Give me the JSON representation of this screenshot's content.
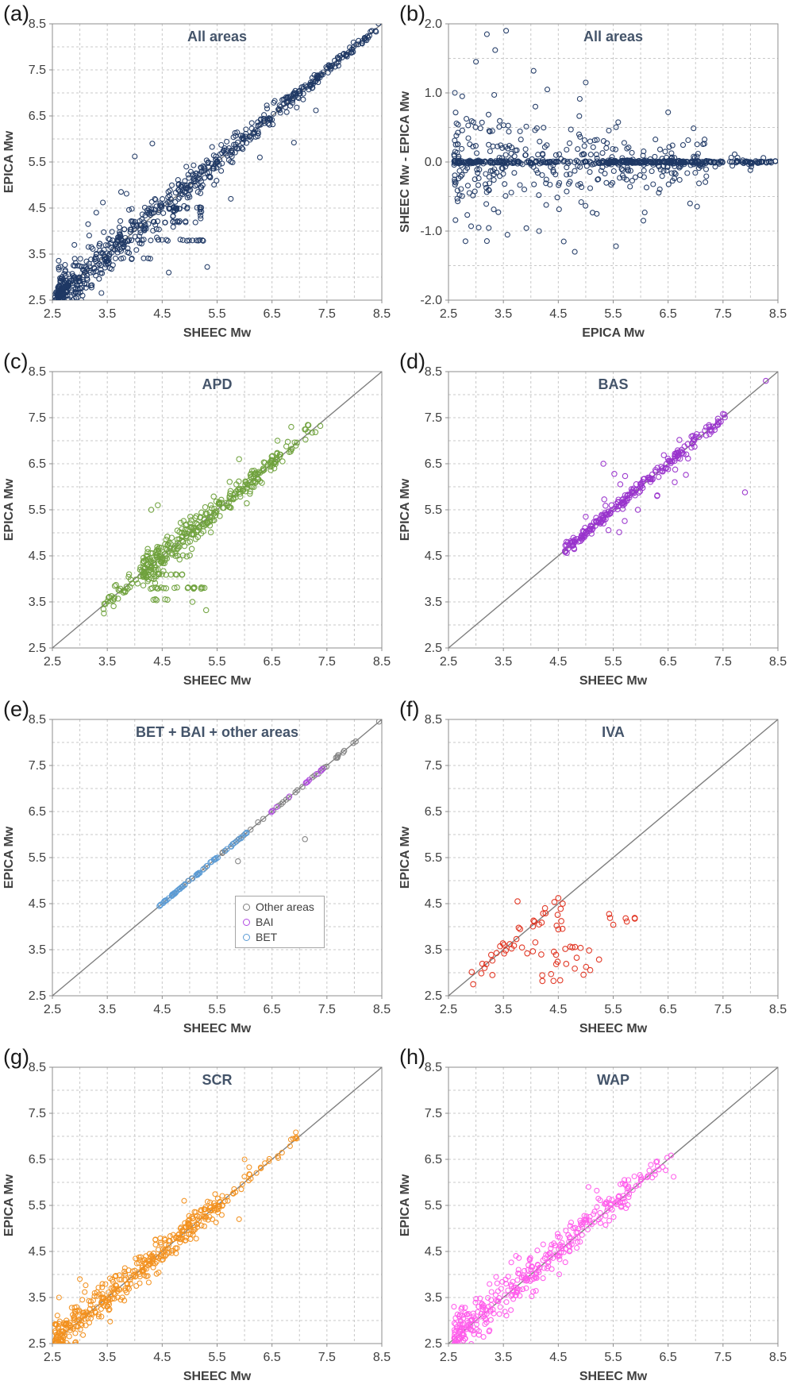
{
  "chart_data": [
    {
      "type": "scatter",
      "label": "(a)",
      "title": "All areas",
      "xlabel": "SHEEC Mw",
      "ylabel": "EPICA Mw",
      "xlim": [
        2.5,
        8.5
      ],
      "ylim": [
        2.5,
        8.5
      ],
      "xticks": [
        2.5,
        3.5,
        4.5,
        5.5,
        6.5,
        7.5,
        8.5
      ],
      "yticks": [
        2.5,
        3.5,
        4.5,
        5.5,
        6.5,
        7.5,
        8.5
      ],
      "grid_step": 0.5,
      "diagonal": true,
      "color": "#1F3864",
      "marker_radius": 3,
      "seed": 11,
      "series": [
        {
          "mode": "diag",
          "count": 560,
          "x_min": 2.6,
          "x_max": 7.4,
          "bias": 1.6,
          "sigma": 0.3,
          "tighten": 0.72,
          "outliers": [
            [
              4.0,
              5.62
            ],
            [
              4.32,
              5.9
            ],
            [
              3.42,
              4.62
            ],
            [
              6.9,
              5.92
            ],
            [
              5.32,
              3.22
            ],
            [
              4.62,
              3.1
            ],
            [
              6.28,
              5.6
            ],
            [
              3.05,
              2.6
            ],
            [
              7.3,
              6.62
            ],
            [
              3.3,
              4.4
            ],
            [
              3.75,
              4.85
            ],
            [
              2.9,
              3.7
            ],
            [
              3.15,
              4.15
            ],
            [
              5.75,
              4.7
            ]
          ]
        },
        {
          "mode": "diag",
          "count": 70,
          "x_min": 7.2,
          "x_max": 8.48,
          "bias": 1.1,
          "sigma": 0.05,
          "tighten": 0
        },
        {
          "mode": "diag",
          "count": 45,
          "x_min": 2.55,
          "x_max": 2.8,
          "bias": 1.0,
          "sigma": 0.06,
          "tighten": 0
        }
      ],
      "rows": [
        {
          "y": 3.8,
          "x_min": 3.35,
          "x_max": 5.3,
          "count": 26
        },
        {
          "y": 4.2,
          "x_min": 3.9,
          "x_max": 5.25,
          "count": 16
        },
        {
          "y": 4.5,
          "x_min": 4.15,
          "x_max": 5.3,
          "count": 12
        },
        {
          "y": 5.0,
          "x_min": 4.65,
          "x_max": 5.5,
          "count": 9
        },
        {
          "y": 3.4,
          "x_min": 3.2,
          "x_max": 4.3,
          "count": 10
        }
      ],
      "cols": [
        {
          "x": 5.2,
          "y_min": 4.25,
          "y_max": 5.45,
          "count": 14
        },
        {
          "x": 4.7,
          "y_min": 4.05,
          "y_max": 4.8,
          "count": 8
        }
      ]
    },
    {
      "type": "scatter",
      "label": "(b)",
      "title": "All areas",
      "xlabel": "EPICA Mw",
      "ylabel": "SHEEC Mw - EPICA Mw",
      "xlim": [
        2.5,
        8.5
      ],
      "ylim": [
        -2,
        2
      ],
      "xticks": [
        2.5,
        3.5,
        4.5,
        5.5,
        6.5,
        7.5,
        8.5
      ],
      "yticks": [
        -2,
        -1,
        0,
        1,
        2
      ],
      "grid_step": 0.5,
      "diagonal": false,
      "color": "#1F3864",
      "marker_radius": 3,
      "seed": 22,
      "series": [
        {
          "mode": "resid",
          "count": 520,
          "x_min": 2.6,
          "x_max": 7.2,
          "bias": 1.5,
          "sigma": 0.42,
          "tighten": 0.55,
          "zero_frac": 0.38,
          "outliers": [
            [
              3.2,
              1.85
            ],
            [
              3.55,
              1.9
            ],
            [
              3.35,
              1.62
            ],
            [
              3.0,
              1.45
            ],
            [
              4.05,
              1.32
            ],
            [
              4.3,
              1.05
            ],
            [
              5.0,
              1.15
            ],
            [
              2.75,
              0.95
            ],
            [
              6.5,
              0.72
            ],
            [
              4.6,
              -1.15
            ],
            [
              5.55,
              -1.22
            ],
            [
              4.15,
              -1.0
            ],
            [
              6.05,
              -0.85
            ],
            [
              3.05,
              -0.95
            ],
            [
              5.2,
              -0.75
            ],
            [
              6.9,
              -0.6
            ],
            [
              4.8,
              -1.3
            ]
          ]
        },
        {
          "mode": "resid",
          "count": 200,
          "x_min": 5.2,
          "x_max": 8.48,
          "bias": 0.9,
          "sigma": 0.06,
          "tighten": 0,
          "zero_frac": 0.75
        }
      ]
    },
    {
      "type": "scatter",
      "label": "(c)",
      "title": "APD",
      "xlabel": "SHEEC Mw",
      "ylabel": "EPICA Mw",
      "xlim": [
        2.5,
        8.5
      ],
      "ylim": [
        2.5,
        8.5
      ],
      "xticks": [
        2.5,
        3.5,
        4.5,
        5.5,
        6.5,
        7.5,
        8.5
      ],
      "yticks": [
        2.5,
        3.5,
        4.5,
        5.5,
        6.5,
        7.5,
        8.5
      ],
      "grid_step": 0.5,
      "diagonal": true,
      "color": "#6FA13C",
      "marker_radius": 3.2,
      "seed": 33,
      "series": [
        {
          "mode": "diag",
          "count": 300,
          "x_min": 4.15,
          "x_max": 6.6,
          "bias": 1.35,
          "sigma": 0.22,
          "tighten": 0.55,
          "outliers": [
            [
              5.3,
              3.32
            ],
            [
              5.05,
              3.5
            ],
            [
              4.42,
              5.6
            ],
            [
              4.3,
              5.5
            ],
            [
              6.85,
              7.3
            ],
            [
              7.38,
              7.32
            ],
            [
              6.6,
              7.0
            ],
            [
              5.9,
              6.6
            ]
          ]
        },
        {
          "mode": "diag",
          "count": 40,
          "x_min": 3.42,
          "x_max": 4.2,
          "bias": 1,
          "sigma": 0.1,
          "tighten": 0
        },
        {
          "mode": "diag",
          "count": 25,
          "x_min": 6.5,
          "x_max": 7.3,
          "bias": 1,
          "sigma": 0.12,
          "tighten": 0
        }
      ],
      "rows": [
        {
          "y": 3.8,
          "x_min": 4.25,
          "x_max": 5.3,
          "count": 20
        },
        {
          "y": 4.1,
          "x_min": 4.3,
          "x_max": 5.2,
          "count": 10
        },
        {
          "y": 4.5,
          "x_min": 4.35,
          "x_max": 5.15,
          "count": 8
        },
        {
          "y": 3.55,
          "x_min": 4.3,
          "x_max": 4.9,
          "count": 5
        }
      ]
    },
    {
      "type": "scatter",
      "label": "(d)",
      "title": "BAS",
      "xlabel": "SHEEC Mw",
      "ylabel": "EPICA Mw",
      "xlim": [
        2.5,
        8.5
      ],
      "ylim": [
        2.5,
        8.5
      ],
      "xticks": [
        2.5,
        3.5,
        4.5,
        5.5,
        6.5,
        7.5,
        8.5
      ],
      "yticks": [
        2.5,
        3.5,
        4.5,
        5.5,
        6.5,
        7.5,
        8.5
      ],
      "grid_step": 0.5,
      "diagonal": true,
      "color": "#9933CC",
      "marker_radius": 3.2,
      "seed": 44,
      "series": [
        {
          "mode": "diag",
          "count": 210,
          "x_min": 4.62,
          "x_max": 7.55,
          "bias": 1.25,
          "sigma": 0.06,
          "tighten": 0,
          "outliers": [
            [
              5.32,
              6.5
            ],
            [
              5.52,
              6.28
            ],
            [
              7.9,
              5.88
            ],
            [
              6.62,
              6.1
            ],
            [
              5.95,
              5.5
            ],
            [
              6.3,
              5.8
            ],
            [
              8.28,
              8.3
            ],
            [
              5.0,
              5.35
            ]
          ]
        },
        {
          "mode": "diag",
          "count": 26,
          "x_min": 5.3,
          "x_max": 7.0,
          "bias": 1.1,
          "sigma": 0.28,
          "tighten": 0
        }
      ]
    },
    {
      "type": "scatter",
      "label": "(e)",
      "title": "BET + BAI + other areas",
      "xlabel": "SHEEC Mw",
      "ylabel": "EPICA Mw",
      "xlim": [
        2.5,
        8.5
      ],
      "ylim": [
        2.5,
        8.5
      ],
      "xticks": [
        2.5,
        3.5,
        4.5,
        5.5,
        6.5,
        7.5,
        8.5
      ],
      "yticks": [
        2.5,
        3.5,
        4.5,
        5.5,
        6.5,
        7.5,
        8.5
      ],
      "grid_step": 0.5,
      "diagonal": true,
      "color": "#7F7F7F",
      "marker_radius": 3.2,
      "seed": 55,
      "legend": true,
      "series": [
        {
          "name": "Other areas",
          "color": "#7F7F7F",
          "mode": "diag",
          "count": 42,
          "x_min": 4.7,
          "x_max": 8.48,
          "bias": 0.8,
          "sigma": 0.012,
          "tighten": 0,
          "outliers": [
            [
              5.88,
              5.42
            ],
            [
              7.1,
              5.9
            ]
          ]
        },
        {
          "name": "BAI",
          "color": "#B24BE3",
          "mode": "diag",
          "count": 12,
          "x_min": 6.45,
          "x_max": 7.62,
          "bias": 1,
          "sigma": 0.008,
          "tighten": 0
        },
        {
          "name": "BET",
          "color": "#5B9BD5",
          "mode": "diag",
          "count": 60,
          "x_min": 4.45,
          "x_max": 6.05,
          "bias": 1.15,
          "sigma": 0.008,
          "tighten": 0
        }
      ]
    },
    {
      "type": "scatter",
      "label": "(f)",
      "title": "IVA",
      "xlabel": "SHEEC Mw",
      "ylabel": "EPICA Mw",
      "xlim": [
        2.5,
        8.5
      ],
      "ylim": [
        2.5,
        8.5
      ],
      "xticks": [
        2.5,
        3.5,
        4.5,
        5.5,
        6.5,
        7.5,
        8.5
      ],
      "yticks": [
        2.5,
        3.5,
        4.5,
        5.5,
        6.5,
        7.5,
        8.5
      ],
      "grid_step": 0.5,
      "diagonal": true,
      "color": "#E0301E",
      "marker_radius": 3.3,
      "seed": 66,
      "series": [
        {
          "mode": "diag",
          "count": 16,
          "x_min": 2.92,
          "x_max": 3.75,
          "bias": 1,
          "sigma": 0.1,
          "tighten": 0,
          "outliers": [
            [
              4.5,
              4.62
            ],
            [
              4.58,
              4.5
            ],
            [
              2.95,
              2.75
            ],
            [
              3.3,
              2.95
            ]
          ]
        },
        {
          "mode": "uniform",
          "count": 18,
          "x_min": 3.75,
          "x_max": 4.65,
          "y_min": 3.9,
          "y_max": 4.6
        },
        {
          "mode": "uniform",
          "count": 16,
          "x_min": 4.4,
          "x_max": 5.5,
          "y_min": 3.05,
          "y_max": 3.6
        },
        {
          "mode": "uniform",
          "count": 7,
          "x_min": 5.35,
          "x_max": 5.9,
          "y_min": 3.95,
          "y_max": 4.3
        },
        {
          "mode": "uniform",
          "count": 6,
          "x_min": 4.2,
          "x_max": 5.05,
          "y_min": 2.7,
          "y_max": 3.0
        },
        {
          "mode": "uniform",
          "count": 6,
          "x_min": 3.6,
          "x_max": 4.2,
          "y_min": 3.3,
          "y_max": 3.7
        }
      ]
    },
    {
      "type": "scatter",
      "label": "(g)",
      "title": "SCR",
      "xlabel": "SHEEC Mw",
      "ylabel": "EPICA Mw",
      "xlim": [
        2.5,
        8.5
      ],
      "ylim": [
        2.5,
        8.5
      ],
      "xticks": [
        2.5,
        3.5,
        4.5,
        5.5,
        6.5,
        7.5,
        8.5
      ],
      "yticks": [
        2.5,
        3.5,
        4.5,
        5.5,
        6.5,
        7.5,
        8.5
      ],
      "grid_step": 0.5,
      "diagonal": true,
      "color": "#F2901D",
      "marker_radius": 3,
      "seed": 77,
      "series": [
        {
          "mode": "diag",
          "count": 400,
          "x_min": 2.55,
          "x_max": 5.6,
          "bias": 1.45,
          "sigma": 0.22,
          "tighten": 0.35,
          "outliers": [
            [
              2.62,
              3.5
            ],
            [
              3.0,
              3.9
            ],
            [
              4.9,
              5.6
            ],
            [
              5.9,
              5.2
            ],
            [
              2.55,
              2.52
            ],
            [
              6.0,
              6.5
            ],
            [
              6.95,
              6.95
            ]
          ]
        },
        {
          "mode": "diag",
          "count": 30,
          "x_min": 5.6,
          "x_max": 7.0,
          "bias": 1,
          "sigma": 0.08,
          "tighten": 0
        }
      ]
    },
    {
      "type": "scatter",
      "label": "(h)",
      "title": "WAP",
      "xlabel": "SHEEC Mw",
      "ylabel": "EPICA Mw",
      "xlim": [
        2.5,
        8.5
      ],
      "ylim": [
        2.5,
        8.5
      ],
      "xticks": [
        2.5,
        3.5,
        4.5,
        5.5,
        6.5,
        7.5,
        8.5
      ],
      "yticks": [
        2.5,
        3.5,
        4.5,
        5.5,
        6.5,
        7.5,
        8.5
      ],
      "grid_step": 0.5,
      "diagonal": true,
      "color": "#FF5BEB",
      "marker_radius": 3,
      "seed": 88,
      "series": [
        {
          "mode": "diag",
          "count": 340,
          "x_min": 2.6,
          "x_max": 5.8,
          "bias": 1.4,
          "sigma": 0.24,
          "tighten": 0.35,
          "offset": 0.05,
          "outliers": [
            [
              2.68,
              2.62
            ],
            [
              6.6,
              6.12
            ],
            [
              5.05,
              5.9
            ],
            [
              5.2,
              5.82
            ],
            [
              2.6,
              3.3
            ]
          ]
        },
        {
          "mode": "diag",
          "count": 25,
          "x_min": 5.7,
          "x_max": 6.6,
          "bias": 1,
          "sigma": 0.12,
          "tighten": 0
        }
      ]
    }
  ]
}
